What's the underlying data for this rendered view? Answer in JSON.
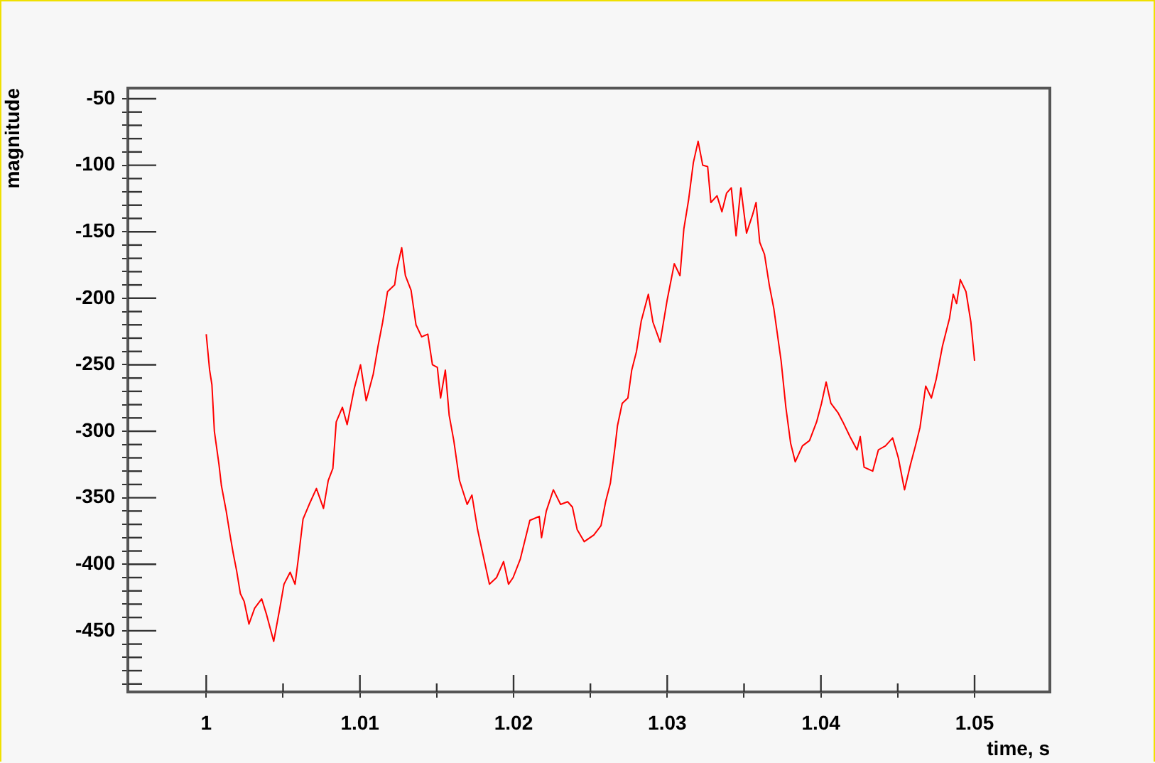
{
  "chart_data": {
    "type": "line",
    "xlabel": "time, s",
    "ylabel": "magnitude",
    "xlim": [
      0.9949,
      1.0549
    ],
    "ylim": [
      -496,
      -42
    ],
    "xticks": [
      1,
      {
        "value": 1.005,
        "label": null
      },
      1.01,
      {
        "value": 1.015,
        "label": null
      },
      1.02,
      {
        "value": 1.025,
        "label": null
      },
      1.03,
      {
        "value": 1.035,
        "label": null
      },
      1.04,
      {
        "value": 1.045,
        "label": null
      },
      1.05
    ],
    "yticks": [
      {
        "value": -490,
        "label": null
      },
      {
        "value": -480,
        "label": null
      },
      {
        "value": -470,
        "label": null
      },
      {
        "value": -460,
        "label": null
      },
      -450,
      {
        "value": -440,
        "label": null
      },
      {
        "value": -430,
        "label": null
      },
      {
        "value": -420,
        "label": null
      },
      {
        "value": -410,
        "label": null
      },
      -400,
      {
        "value": -390,
        "label": null
      },
      {
        "value": -380,
        "label": null
      },
      {
        "value": -370,
        "label": null
      },
      {
        "value": -360,
        "label": null
      },
      -350,
      {
        "value": -340,
        "label": null
      },
      {
        "value": -330,
        "label": null
      },
      {
        "value": -320,
        "label": null
      },
      {
        "value": -310,
        "label": null
      },
      -300,
      {
        "value": -290,
        "label": null
      },
      {
        "value": -280,
        "label": null
      },
      {
        "value": -270,
        "label": null
      },
      {
        "value": -260,
        "label": null
      },
      -250,
      {
        "value": -240,
        "label": null
      },
      {
        "value": -230,
        "label": null
      },
      {
        "value": -220,
        "label": null
      },
      {
        "value": -210,
        "label": null
      },
      -200,
      {
        "value": -190,
        "label": null
      },
      {
        "value": -180,
        "label": null
      },
      {
        "value": -170,
        "label": null
      },
      {
        "value": -160,
        "label": null
      },
      -150,
      {
        "value": -140,
        "label": null
      },
      {
        "value": -130,
        "label": null
      },
      {
        "value": -120,
        "label": null
      },
      {
        "value": -110,
        "label": null
      },
      -100,
      {
        "value": -90,
        "label": null
      },
      {
        "value": -80,
        "label": null
      },
      {
        "value": -70,
        "label": null
      },
      {
        "value": -60,
        "label": null
      },
      -50
    ],
    "legend": false,
    "marker": "none",
    "line_style": "solid",
    "series": [
      {
        "color": "#ff0000",
        "x": [
          1.0,
          1.00022,
          1.00037,
          1.00053,
          1.00083,
          1.00099,
          1.0013,
          1.00155,
          1.00176,
          1.00198,
          1.00222,
          1.00247,
          1.00278,
          1.00315,
          1.00361,
          1.00393,
          1.00439,
          1.00479,
          1.00506,
          1.00546,
          1.00578,
          1.00599,
          1.0063,
          1.0067,
          1.00717,
          1.00763,
          1.00794,
          1.00824,
          1.00846,
          1.00886,
          1.00917,
          1.00963,
          1.01004,
          1.01041,
          1.01087,
          1.01118,
          1.01148,
          1.0118,
          1.01226,
          1.01241,
          1.01272,
          1.01296,
          1.01333,
          1.01365,
          1.01402,
          1.01442,
          1.01472,
          1.01504,
          1.01525,
          1.01556,
          1.01581,
          1.01611,
          1.01648,
          1.01698,
          1.01729,
          1.01766,
          1.01796,
          1.01843,
          1.01889,
          1.01935,
          1.01967,
          1.01997,
          1.02044,
          1.02106,
          1.02167,
          1.02182,
          1.02213,
          1.02259,
          1.02306,
          1.02352,
          1.02383,
          1.02414,
          1.0246,
          1.02522,
          1.02569,
          1.02599,
          1.0263,
          1.02661,
          1.02676,
          1.02707,
          1.02744,
          1.02769,
          1.028,
          1.02831,
          1.02877,
          1.02907,
          1.02954,
          1.03,
          1.03046,
          1.03083,
          1.03108,
          1.03139,
          1.0317,
          1.03201,
          1.03231,
          1.03263,
          1.03284,
          1.03324,
          1.03356,
          1.03386,
          1.03417,
          1.03448,
          1.03479,
          1.03516,
          1.03556,
          1.03578,
          1.03602,
          1.03633,
          1.03664,
          1.03694,
          1.03741,
          1.03772,
          1.03803,
          1.03833,
          1.0388,
          1.03926,
          1.03972,
          1.04004,
          1.04034,
          1.04065,
          1.04111,
          1.04143,
          1.04189,
          1.04235,
          1.04256,
          1.04281,
          1.04337,
          1.04374,
          1.0442,
          1.04467,
          1.04504,
          1.04544,
          1.04583,
          1.04615,
          1.04645,
          1.04682,
          1.04719,
          1.0475,
          1.04791,
          1.04837,
          1.04861,
          1.04883,
          1.04907,
          1.04944,
          1.04976,
          1.05
        ],
        "values": [
          -227,
          -254,
          -265,
          -300,
          -325,
          -341,
          -360,
          -378,
          -392,
          -405,
          -422,
          -428,
          -445,
          -433,
          -426,
          -438,
          -458,
          -433,
          -415,
          -406,
          -415,
          -396,
          -366,
          -355,
          -343,
          -358,
          -337,
          -328,
          -293,
          -282,
          -295,
          -268,
          -250,
          -277,
          -257,
          -236,
          -218,
          -195,
          -190,
          -178,
          -162,
          -183,
          -194,
          -220,
          -229,
          -227,
          -250,
          -252,
          -275,
          -254,
          -288,
          -307,
          -337,
          -355,
          -348,
          -374,
          -390,
          -415,
          -410,
          -398,
          -415,
          -410,
          -396,
          -367,
          -364,
          -380,
          -360,
          -344,
          -355,
          -353,
          -357,
          -374,
          -383,
          -378,
          -371,
          -353,
          -339,
          -311,
          -296,
          -279,
          -275,
          -254,
          -240,
          -217,
          -197,
          -218,
          -233,
          -201,
          -174,
          -183,
          -148,
          -126,
          -98,
          -82,
          -100,
          -101,
          -128,
          -123,
          -135,
          -121,
          -117,
          -153,
          -117,
          -151,
          -137,
          -128,
          -158,
          -167,
          -190,
          -208,
          -247,
          -282,
          -309,
          -323,
          -311,
          -307,
          -293,
          -279,
          -263,
          -279,
          -286,
          -293,
          -304,
          -314,
          -304,
          -327,
          -330,
          -314,
          -311,
          -305,
          -320,
          -344,
          -325,
          -311,
          -297,
          -266,
          -275,
          -261,
          -236,
          -215,
          -197,
          -204,
          -186,
          -195,
          -218,
          -247
        ]
      }
    ]
  }
}
